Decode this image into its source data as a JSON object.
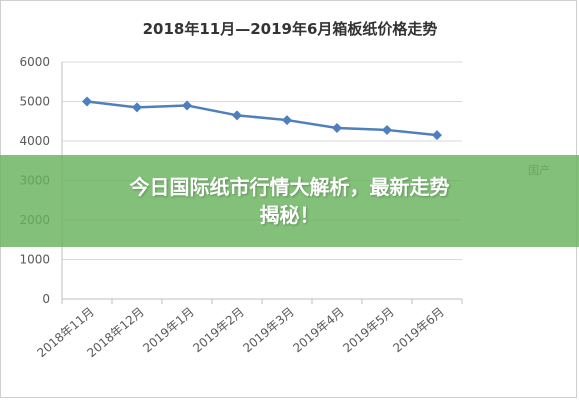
{
  "chart_data": {
    "type": "line",
    "title": "2018年11月—2019年6月箱板纸价格走势",
    "xlabel": "",
    "ylabel": "",
    "categories": [
      "2018年11月",
      "2018年12月",
      "2019年1月",
      "2019年2月",
      "2019年3月",
      "2019年4月",
      "2019年5月",
      "2019年6月"
    ],
    "series": [
      {
        "values": [
          5000,
          4850,
          4900,
          4650,
          4530,
          4330,
          4280,
          4150
        ]
      }
    ],
    "ylim": [
      0,
      6000
    ],
    "yticks": [
      0,
      1000,
      2000,
      3000,
      4000,
      5000,
      6000
    ],
    "grid": true,
    "legend": "none",
    "colors": {
      "line": "#4f7fbd",
      "grid": "#d9d9d9",
      "axis": "#bfbfbf",
      "text": "#595959"
    }
  },
  "overlay": {
    "headline_line1": "今日国际纸市行情大解析，最新走势",
    "headline_line2": "揭秘！",
    "watermark": "国产"
  }
}
